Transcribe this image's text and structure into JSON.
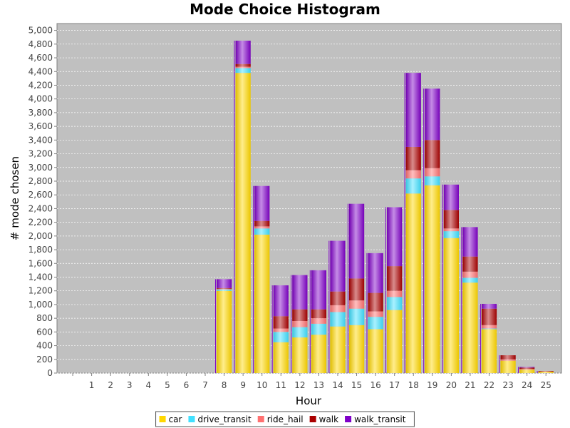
{
  "chart_data": {
    "type": "bar",
    "stacked": true,
    "title": "Mode Choice Histogram",
    "xlabel": "Hour",
    "ylabel": "# mode chosen",
    "ylim": [
      0,
      5100
    ],
    "y_ticks": [
      0,
      200,
      400,
      600,
      800,
      1000,
      1200,
      1400,
      1600,
      1800,
      2000,
      2200,
      2400,
      2600,
      2800,
      3000,
      3200,
      3400,
      3600,
      3800,
      4000,
      4200,
      4400,
      4600,
      4800,
      5000
    ],
    "y_tick_labels": [
      "0",
      "200",
      "400",
      "600",
      "800",
      "1,000",
      "1,200",
      "1,400",
      "1,600",
      "1,800",
      "2,000",
      "2,200",
      "2,400",
      "2,600",
      "2,800",
      "3,000",
      "3,200",
      "3,400",
      "3,600",
      "3,800",
      "4,000",
      "4,200",
      "4,400",
      "4,600",
      "4,800",
      "5,000"
    ],
    "categories": [
      "",
      "1",
      "2",
      "3",
      "4",
      "5",
      "6",
      "7",
      "8",
      "9",
      "10",
      "11",
      "12",
      "13",
      "14",
      "15",
      "16",
      "17",
      "18",
      "19",
      "20",
      "21",
      "22",
      "23",
      "24",
      "25"
    ],
    "grid": true,
    "legend_position": "bottom",
    "background_color": "#c0c0c0",
    "series": [
      {
        "name": "car",
        "color": "#ffd700",
        "values": [
          0,
          0,
          0,
          0,
          0,
          0,
          0,
          0,
          1200,
          4380,
          2020,
          450,
          520,
          560,
          680,
          700,
          640,
          920,
          2620,
          2740,
          1970,
          1320,
          640,
          180,
          50,
          20
        ]
      },
      {
        "name": "drive_transit",
        "color": "#40e0ff",
        "values": [
          0,
          0,
          0,
          0,
          0,
          0,
          0,
          0,
          20,
          70,
          90,
          150,
          150,
          160,
          210,
          240,
          180,
          190,
          220,
          130,
          100,
          70,
          10,
          0,
          0,
          0
        ]
      },
      {
        "name": "ride_hail",
        "color": "#ff7070",
        "values": [
          0,
          0,
          0,
          0,
          0,
          0,
          0,
          0,
          10,
          20,
          30,
          50,
          90,
          80,
          100,
          120,
          80,
          90,
          120,
          120,
          40,
          90,
          50,
          20,
          10,
          0
        ]
      },
      {
        "name": "walk",
        "color": "#aa0000",
        "values": [
          0,
          0,
          0,
          0,
          0,
          0,
          0,
          0,
          10,
          40,
          80,
          180,
          170,
          130,
          200,
          320,
          270,
          360,
          340,
          410,
          270,
          220,
          240,
          60,
          20,
          10
        ]
      },
      {
        "name": "walk_transit",
        "color": "#7f00c8",
        "values": [
          0,
          0,
          0,
          0,
          0,
          0,
          0,
          0,
          130,
          340,
          510,
          450,
          500,
          570,
          740,
          1090,
          580,
          860,
          1080,
          750,
          370,
          430,
          70,
          0,
          10,
          0
        ]
      }
    ]
  }
}
